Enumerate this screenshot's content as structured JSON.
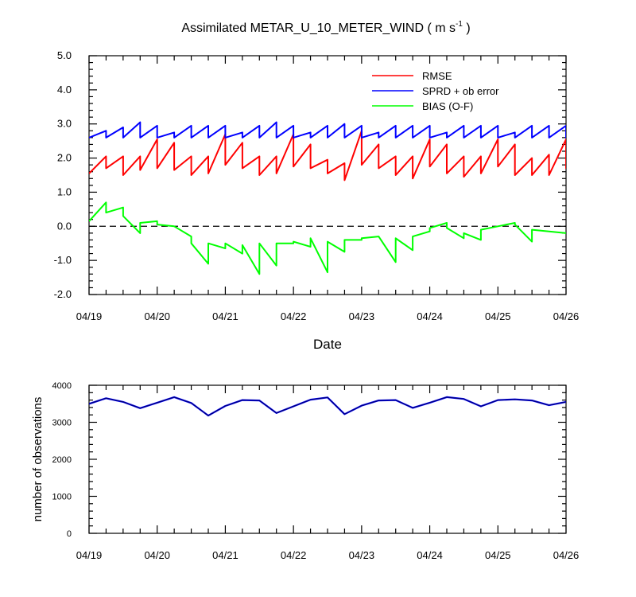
{
  "chart_data": [
    {
      "type": "line",
      "title": "Assimilated METAR_U_10_METER_WIND ( m s",
      "title_superscript": "-1",
      "title_suffix": " )",
      "xlabel": "Date",
      "ylabel": "",
      "x_tick_labels": [
        "04/19",
        "04/20",
        "04/21",
        "04/22",
        "04/23",
        "04/24",
        "04/25",
        "04/26"
      ],
      "y_tick_labels": [
        "-2.0",
        "-1.0",
        "0.0",
        "1.0",
        "2.0",
        "3.0",
        "4.0",
        "5.0"
      ],
      "xlim_days": [
        0,
        7
      ],
      "ylim": [
        -2.0,
        5.0
      ],
      "zero_line": "dashed",
      "legend_position": "top-right",
      "series": [
        {
          "name": "RMSE",
          "color": "#ff0000",
          "points": [
            [
              0,
              1.55
            ],
            [
              0.25,
              2.05
            ],
            [
              0.25,
              1.7
            ],
            [
              0.5,
              2.05
            ],
            [
              0.5,
              1.5
            ],
            [
              0.75,
              2.05
            ],
            [
              0.75,
              1.65
            ],
            [
              1.0,
              2.55
            ],
            [
              1.0,
              1.7
            ],
            [
              1.25,
              2.45
            ],
            [
              1.25,
              1.65
            ],
            [
              1.5,
              2.05
            ],
            [
              1.5,
              1.5
            ],
            [
              1.75,
              2.05
            ],
            [
              1.75,
              1.55
            ],
            [
              2.0,
              2.7
            ],
            [
              2.0,
              1.8
            ],
            [
              2.25,
              2.45
            ],
            [
              2.25,
              1.7
            ],
            [
              2.5,
              2.05
            ],
            [
              2.5,
              1.5
            ],
            [
              2.75,
              2.05
            ],
            [
              2.75,
              1.55
            ],
            [
              3.0,
              2.7
            ],
            [
              3.0,
              1.75
            ],
            [
              3.25,
              2.4
            ],
            [
              3.25,
              1.7
            ],
            [
              3.5,
              1.95
            ],
            [
              3.5,
              1.55
            ],
            [
              3.75,
              1.85
            ],
            [
              3.75,
              1.35
            ],
            [
              4.0,
              2.8
            ],
            [
              4.0,
              1.8
            ],
            [
              4.25,
              2.4
            ],
            [
              4.25,
              1.7
            ],
            [
              4.5,
              2.05
            ],
            [
              4.5,
              1.5
            ],
            [
              4.75,
              2.05
            ],
            [
              4.75,
              1.4
            ],
            [
              5.0,
              2.55
            ],
            [
              5.0,
              1.75
            ],
            [
              5.25,
              2.4
            ],
            [
              5.25,
              1.55
            ],
            [
              5.5,
              2.05
            ],
            [
              5.5,
              1.45
            ],
            [
              5.75,
              2.05
            ],
            [
              5.75,
              1.55
            ],
            [
              6.0,
              2.55
            ],
            [
              6.0,
              1.75
            ],
            [
              6.25,
              2.4
            ],
            [
              6.25,
              1.5
            ],
            [
              6.5,
              2.0
            ],
            [
              6.5,
              1.5
            ],
            [
              6.75,
              2.1
            ],
            [
              6.75,
              1.5
            ],
            [
              7.0,
              2.55
            ],
            [
              7.0,
              1.7
            ],
            [
              7.25,
              2.35
            ]
          ]
        },
        {
          "name": "SPRD + ob error",
          "color": "#0000ff",
          "points": [
            [
              0,
              2.6
            ],
            [
              0.25,
              2.8
            ],
            [
              0.25,
              2.6
            ],
            [
              0.5,
              2.9
            ],
            [
              0.5,
              2.6
            ],
            [
              0.75,
              3.05
            ],
            [
              0.75,
              2.6
            ],
            [
              1.0,
              2.95
            ],
            [
              1.0,
              2.6
            ],
            [
              1.25,
              2.75
            ],
            [
              1.25,
              2.6
            ],
            [
              1.5,
              2.95
            ],
            [
              1.5,
              2.6
            ],
            [
              1.75,
              2.95
            ],
            [
              1.75,
              2.6
            ],
            [
              2.0,
              2.95
            ],
            [
              2.0,
              2.6
            ],
            [
              2.25,
              2.75
            ],
            [
              2.25,
              2.6
            ],
            [
              2.5,
              2.95
            ],
            [
              2.5,
              2.6
            ],
            [
              2.75,
              3.05
            ],
            [
              2.75,
              2.6
            ],
            [
              3.0,
              2.95
            ],
            [
              3.0,
              2.6
            ],
            [
              3.25,
              2.75
            ],
            [
              3.25,
              2.6
            ],
            [
              3.5,
              2.95
            ],
            [
              3.5,
              2.6
            ],
            [
              3.75,
              3.0
            ],
            [
              3.75,
              2.6
            ],
            [
              4.0,
              2.95
            ],
            [
              4.0,
              2.6
            ],
            [
              4.25,
              2.75
            ],
            [
              4.25,
              2.6
            ],
            [
              4.5,
              2.95
            ],
            [
              4.5,
              2.6
            ],
            [
              4.75,
              2.95
            ],
            [
              4.75,
              2.6
            ],
            [
              5.0,
              2.95
            ],
            [
              5.0,
              2.6
            ],
            [
              5.25,
              2.75
            ],
            [
              5.25,
              2.6
            ],
            [
              5.5,
              2.95
            ],
            [
              5.5,
              2.6
            ],
            [
              5.75,
              2.95
            ],
            [
              5.75,
              2.6
            ],
            [
              6.0,
              2.95
            ],
            [
              6.0,
              2.6
            ],
            [
              6.25,
              2.75
            ],
            [
              6.25,
              2.6
            ],
            [
              6.5,
              2.95
            ],
            [
              6.5,
              2.6
            ],
            [
              6.75,
              2.95
            ],
            [
              6.75,
              2.6
            ],
            [
              7.0,
              2.95
            ],
            [
              7.0,
              2.6
            ],
            [
              7.25,
              2.9
            ]
          ]
        },
        {
          "name": "BIAS (O-F)",
          "color": "#00ff00",
          "points": [
            [
              0,
              0.15
            ],
            [
              0.25,
              0.7
            ],
            [
              0.25,
              0.4
            ],
            [
              0.5,
              0.55
            ],
            [
              0.5,
              0.3
            ],
            [
              0.75,
              -0.2
            ],
            [
              0.75,
              0.1
            ],
            [
              1.0,
              0.15
            ],
            [
              1.0,
              0.05
            ],
            [
              1.25,
              0.0
            ],
            [
              1.25,
              0.0
            ],
            [
              1.5,
              -0.3
            ],
            [
              1.5,
              -0.5
            ],
            [
              1.75,
              -1.1
            ],
            [
              1.75,
              -0.5
            ],
            [
              2.0,
              -0.65
            ],
            [
              2.0,
              -0.5
            ],
            [
              2.25,
              -0.8
            ],
            [
              2.25,
              -0.55
            ],
            [
              2.5,
              -1.4
            ],
            [
              2.5,
              -0.5
            ],
            [
              2.75,
              -1.15
            ],
            [
              2.75,
              -0.5
            ],
            [
              3.0,
              -0.5
            ],
            [
              3.0,
              -0.45
            ],
            [
              3.25,
              -0.6
            ],
            [
              3.25,
              -0.35
            ],
            [
              3.5,
              -1.35
            ],
            [
              3.5,
              -0.45
            ],
            [
              3.75,
              -0.75
            ],
            [
              3.75,
              -0.4
            ],
            [
              4.0,
              -0.4
            ],
            [
              4.0,
              -0.35
            ],
            [
              4.25,
              -0.3
            ],
            [
              4.25,
              -0.3
            ],
            [
              4.5,
              -1.05
            ],
            [
              4.5,
              -0.35
            ],
            [
              4.75,
              -0.7
            ],
            [
              4.75,
              -0.3
            ],
            [
              5.0,
              -0.15
            ],
            [
              5.0,
              -0.05
            ],
            [
              5.25,
              0.1
            ],
            [
              5.25,
              -0.05
            ],
            [
              5.5,
              -0.35
            ],
            [
              5.5,
              -0.2
            ],
            [
              5.75,
              -0.4
            ],
            [
              5.75,
              -0.1
            ],
            [
              6.0,
              0.0
            ],
            [
              6.0,
              0.0
            ],
            [
              6.25,
              0.1
            ],
            [
              6.25,
              0.05
            ],
            [
              6.5,
              -0.45
            ],
            [
              6.5,
              -0.1
            ],
            [
              6.75,
              -0.15
            ],
            [
              6.75,
              -0.15
            ],
            [
              7.0,
              -0.2
            ]
          ]
        }
      ]
    },
    {
      "type": "line",
      "title": "",
      "xlabel": "",
      "ylabel": "number of observations",
      "x_tick_labels": [
        "04/19",
        "04/20",
        "04/21",
        "04/22",
        "04/23",
        "04/24",
        "04/25",
        "04/26"
      ],
      "y_tick_labels": [
        "0",
        "1000",
        "2000",
        "3000",
        "4000"
      ],
      "xlim_days": [
        0,
        7
      ],
      "ylim": [
        0,
        4000
      ],
      "series": [
        {
          "name": "",
          "color": "#0000ff",
          "points": [
            [
              0,
              3500
            ],
            [
              0.25,
              3650
            ],
            [
              0.5,
              3550
            ],
            [
              0.75,
              3380
            ],
            [
              1.0,
              3530
            ],
            [
              1.25,
              3680
            ],
            [
              1.5,
              3520
            ],
            [
              1.75,
              3180
            ],
            [
              2.0,
              3440
            ],
            [
              2.25,
              3600
            ],
            [
              2.5,
              3590
            ],
            [
              2.75,
              3250
            ],
            [
              3.0,
              3430
            ],
            [
              3.25,
              3610
            ],
            [
              3.5,
              3670
            ],
            [
              3.75,
              3220
            ],
            [
              4.0,
              3450
            ],
            [
              4.25,
              3590
            ],
            [
              4.5,
              3600
            ],
            [
              4.75,
              3390
            ],
            [
              5.0,
              3530
            ],
            [
              5.25,
              3680
            ],
            [
              5.5,
              3630
            ],
            [
              5.75,
              3430
            ],
            [
              6.0,
              3600
            ],
            [
              6.25,
              3620
            ],
            [
              6.5,
              3590
            ],
            [
              6.75,
              3460
            ],
            [
              7.0,
              3550
            ]
          ]
        }
      ]
    }
  ]
}
